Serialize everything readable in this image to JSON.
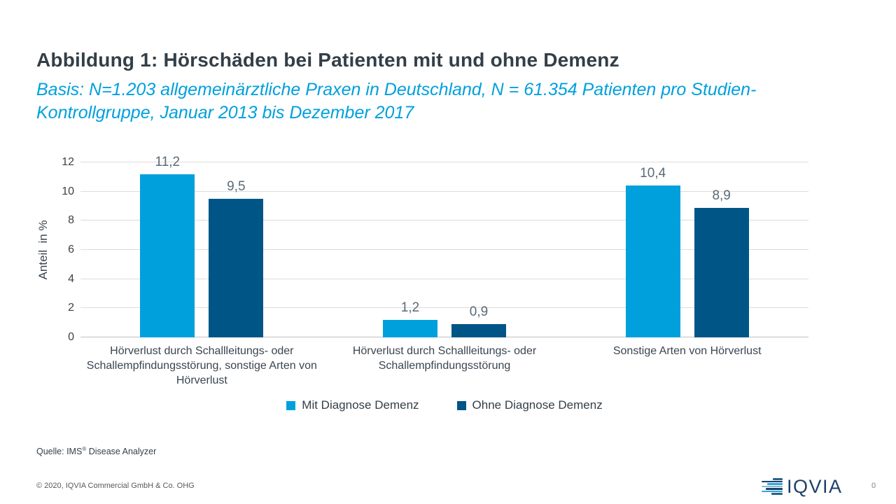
{
  "header": {
    "title": "Abbildung 1: Hörschäden bei Patienten mit und ohne Demenz",
    "subtitle": "Basis: N=1.203 allgemeinärztliche Praxen in Deutschland, N = 61.354 Patienten pro Studien-Kontrollgruppe, Januar 2013 bis Dezember 2017"
  },
  "chart_data": {
    "type": "bar",
    "title": "",
    "xlabel": "",
    "ylabel": "Anteil  in %",
    "ylim": [
      0,
      12
    ],
    "yticks": [
      0,
      2,
      4,
      6,
      8,
      10,
      12
    ],
    "grid": true,
    "legend_position": "bottom",
    "categories": [
      "Hörverlust durch Schallleitungs- oder Schallempfindungsstörung, sonstige Arten von Hörverlust",
      "Hörverlust durch Schallleitungs- oder Schallempfindungsstörung",
      "Sonstige Arten von Hörverlust"
    ],
    "series": [
      {
        "name": "Mit Diagnose Demenz",
        "color": "#00A0DD",
        "values": [
          11.2,
          1.2,
          10.4
        ],
        "labels": [
          "11,2",
          "1,2",
          "10,4"
        ]
      },
      {
        "name": "Ohne Diagnose Demenz",
        "color": "#005587",
        "values": [
          9.5,
          0.9,
          8.9
        ],
        "labels": [
          "9,5",
          "0,9",
          "8,9"
        ]
      }
    ]
  },
  "source": {
    "prefix": "Quelle: IMS",
    "registered": "®",
    "suffix": " Disease Analyzer"
  },
  "footer": {
    "copyright": "© 2020, IQVIA Commercial GmbH & Co. OHG",
    "logo_text": "IQVIA",
    "logo_icon": "iqvia-stripes-icon",
    "page_number": "0"
  },
  "colors": {
    "title_text": "#333F48",
    "subtitle_text": "#00A0DD",
    "bar_light_blue": "#00A0DD",
    "bar_dark_blue": "#005587",
    "value_label": "#5A6A77",
    "gridline": "#DCDCDC",
    "logo_navy": "#1C4168"
  }
}
